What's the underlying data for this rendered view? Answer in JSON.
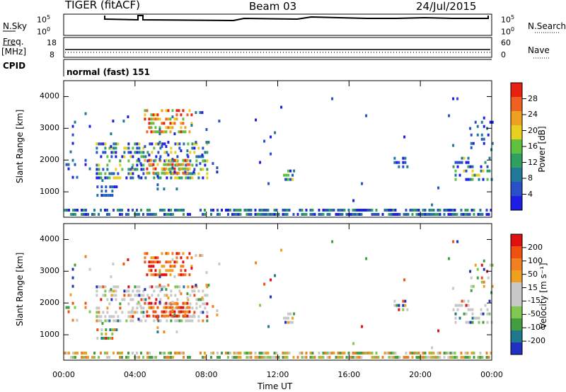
{
  "header": {
    "radar": "TIGER (fitACF)",
    "beam": "Beam 03",
    "date": "24/Jul/2015"
  },
  "strips": {
    "nsky_label": "N.Sky",
    "nsky_ticks": [
      "10^5",
      "10^0"
    ],
    "nsearch_label": "N.Search",
    "nsearch_ticks": [
      "10^5",
      "10^0"
    ],
    "freq_label_1": "Freq.",
    "freq_label_2": "[MHz]",
    "freq_ticks": [
      "18",
      "8"
    ],
    "nave_label": "Nave",
    "nave_ticks": [
      "60",
      "0"
    ],
    "cpid_label": "CPID",
    "cpid_value": "normal (fast) 151"
  },
  "colors": {
    "power_scale": [
      "#1e1ee6",
      "#2850c8",
      "#20789a",
      "#30a060",
      "#60c040",
      "#e8d020",
      "#f0a020",
      "#f06020",
      "#e82010"
    ],
    "velocity_scale": [
      "#2030c0",
      "#207890",
      "#40a040",
      "#80c850",
      "#c8c8c8",
      "#c8c8c8",
      "#f0a020",
      "#f08020",
      "#f05010",
      "#e01010"
    ]
  },
  "chart_data": [
    {
      "type": "heatmap",
      "name": "power",
      "ylabel": "Slant Range [km]",
      "y_ticks": [
        "1000",
        "2000",
        "3000",
        "4000"
      ],
      "x_ticks": [
        "00:00",
        "04:00",
        "08:00",
        "12:00",
        "16:00",
        "20:00",
        "00:00"
      ],
      "colorbar_label": "Power [dB]",
      "colorbar_ticks": [
        "4",
        "8",
        "12",
        "16",
        "20",
        "24",
        "28"
      ],
      "ylim": [
        200,
        4500
      ],
      "xlim_hours": [
        0,
        24
      ]
    },
    {
      "type": "heatmap",
      "name": "velocity",
      "ylabel": "Slant Range [km]",
      "y_ticks": [
        "1000",
        "2000",
        "3000",
        "4000"
      ],
      "x_ticks": [
        "00:00",
        "04:00",
        "08:00",
        "12:00",
        "16:00",
        "20:00",
        "00:00"
      ],
      "xlabel": "Time UT",
      "colorbar_label": "Velocity [m s⁻¹]",
      "colorbar_ticks": [
        "200",
        "100",
        "50",
        "15",
        "-15",
        "-50",
        "-100",
        "-200"
      ],
      "ylim": [
        200,
        4500
      ],
      "xlim_hours": [
        0,
        24
      ]
    }
  ]
}
